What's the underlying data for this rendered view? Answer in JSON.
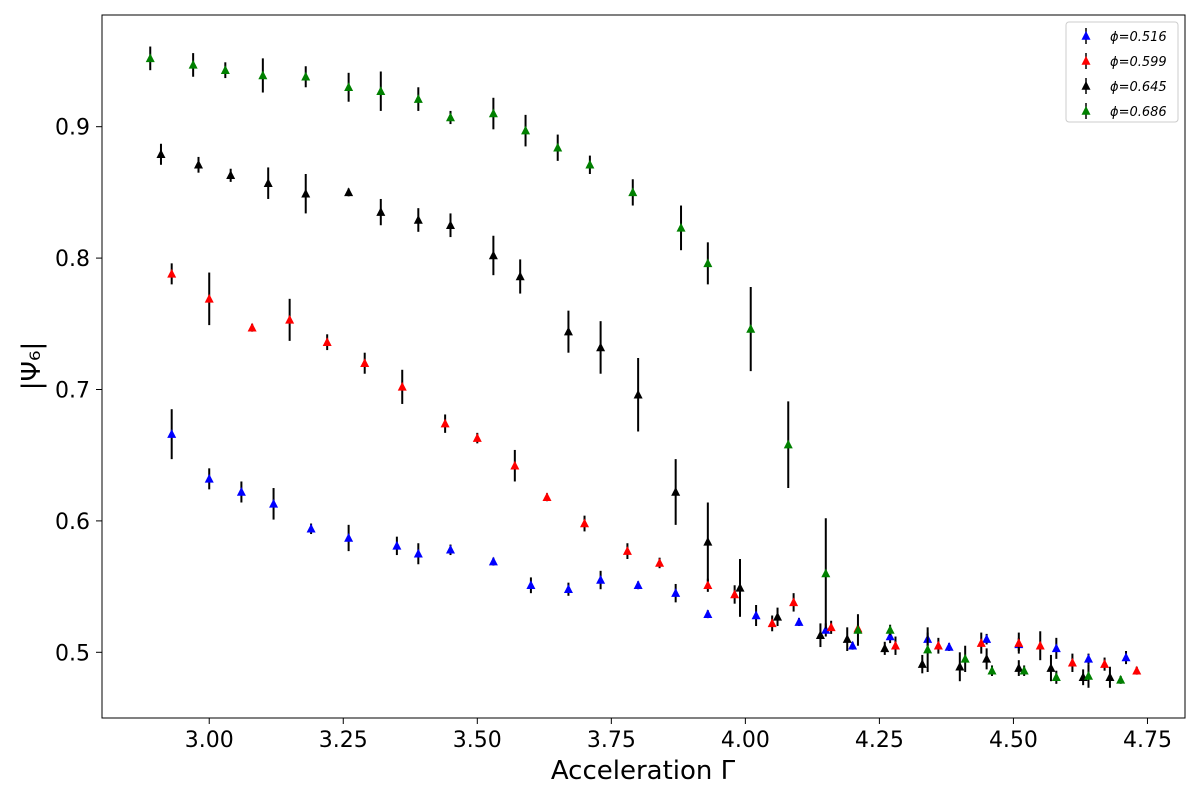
{
  "chart_data": {
    "type": "scatter",
    "xlabel": "Acceleration Γ",
    "ylabel": "|Ψ₆|",
    "xlim": [
      2.8,
      4.82
    ],
    "ylim": [
      0.45,
      0.985
    ],
    "xticks": [
      3.0,
      3.25,
      3.5,
      3.75,
      4.0,
      4.25,
      4.5,
      4.75
    ],
    "xtick_labels": [
      "3.00",
      "3.25",
      "3.50",
      "3.75",
      "4.00",
      "4.25",
      "4.50",
      "4.75"
    ],
    "yticks": [
      0.5,
      0.6,
      0.7,
      0.8,
      0.9
    ],
    "ytick_labels": [
      "0.5",
      "0.6",
      "0.7",
      "0.8",
      "0.9"
    ],
    "grid": false,
    "legend_position": "top-right",
    "marker": "triangle",
    "error_bar_color": "#000000",
    "series": [
      {
        "name": "ϕ=0.516",
        "color": "#0000ff",
        "points": [
          [
            2.93,
            0.666,
            0.019
          ],
          [
            3.0,
            0.632,
            0.008
          ],
          [
            3.06,
            0.622,
            0.008
          ],
          [
            3.12,
            0.613,
            0.012
          ],
          [
            3.19,
            0.594,
            0.004
          ],
          [
            3.26,
            0.587,
            0.01
          ],
          [
            3.35,
            0.581,
            0.007
          ],
          [
            3.39,
            0.575,
            0.008
          ],
          [
            3.45,
            0.578,
            0.004
          ],
          [
            3.53,
            0.569,
            0.003
          ],
          [
            3.6,
            0.551,
            0.006
          ],
          [
            3.67,
            0.548,
            0.005
          ],
          [
            3.73,
            0.555,
            0.007
          ],
          [
            3.8,
            0.551,
            0.003
          ],
          [
            3.87,
            0.545,
            0.007
          ],
          [
            3.93,
            0.529,
            0.003
          ],
          [
            4.02,
            0.528,
            0.008
          ],
          [
            4.1,
            0.523,
            0.003
          ],
          [
            4.15,
            0.517,
            0.005
          ],
          [
            4.2,
            0.505,
            0.003
          ],
          [
            4.27,
            0.512,
            0.005
          ],
          [
            4.34,
            0.51,
            0.005
          ],
          [
            4.38,
            0.504,
            0.003
          ],
          [
            4.45,
            0.51,
            0.004
          ],
          [
            4.51,
            0.506,
            0.005
          ],
          [
            4.58,
            0.503,
            0.008
          ],
          [
            4.64,
            0.495,
            0.004
          ],
          [
            4.71,
            0.496,
            0.005
          ]
        ]
      },
      {
        "name": "ϕ=0.599",
        "color": "#ff0000",
        "points": [
          [
            2.93,
            0.788,
            0.008
          ],
          [
            3.0,
            0.769,
            0.02
          ],
          [
            3.08,
            0.747,
            0.003
          ],
          [
            3.15,
            0.753,
            0.016
          ],
          [
            3.22,
            0.736,
            0.006
          ],
          [
            3.29,
            0.72,
            0.008
          ],
          [
            3.36,
            0.702,
            0.013
          ],
          [
            3.44,
            0.674,
            0.007
          ],
          [
            3.5,
            0.663,
            0.004
          ],
          [
            3.57,
            0.642,
            0.012
          ],
          [
            3.63,
            0.618,
            0.003
          ],
          [
            3.7,
            0.598,
            0.006
          ],
          [
            3.78,
            0.577,
            0.006
          ],
          [
            3.84,
            0.568,
            0.004
          ],
          [
            3.93,
            0.551,
            0.005
          ],
          [
            3.98,
            0.544,
            0.007
          ],
          [
            4.05,
            0.522,
            0.006
          ],
          [
            4.09,
            0.538,
            0.007
          ],
          [
            4.16,
            0.519,
            0.005
          ],
          [
            4.21,
            0.518,
            0.003
          ],
          [
            4.28,
            0.505,
            0.007
          ],
          [
            4.36,
            0.505,
            0.006
          ],
          [
            4.44,
            0.507,
            0.008
          ],
          [
            4.51,
            0.507,
            0.008
          ],
          [
            4.55,
            0.505,
            0.011
          ],
          [
            4.61,
            0.492,
            0.007
          ],
          [
            4.67,
            0.491,
            0.005
          ],
          [
            4.73,
            0.486,
            0.003
          ]
        ]
      },
      {
        "name": "ϕ=0.645",
        "color": "#000000",
        "points": [
          [
            2.91,
            0.879,
            0.008
          ],
          [
            2.98,
            0.871,
            0.006
          ],
          [
            3.04,
            0.863,
            0.005
          ],
          [
            3.11,
            0.857,
            0.012
          ],
          [
            3.18,
            0.849,
            0.015
          ],
          [
            3.26,
            0.85,
            0.003
          ],
          [
            3.32,
            0.835,
            0.01
          ],
          [
            3.39,
            0.829,
            0.009
          ],
          [
            3.45,
            0.825,
            0.009
          ],
          [
            3.53,
            0.802,
            0.015
          ],
          [
            3.58,
            0.786,
            0.013
          ],
          [
            3.67,
            0.744,
            0.016
          ],
          [
            3.73,
            0.732,
            0.02
          ],
          [
            3.8,
            0.696,
            0.028
          ],
          [
            3.87,
            0.622,
            0.025
          ],
          [
            3.93,
            0.584,
            0.03
          ],
          [
            3.99,
            0.549,
            0.022
          ],
          [
            4.06,
            0.527,
            0.007
          ],
          [
            4.14,
            0.513,
            0.009
          ],
          [
            4.19,
            0.51,
            0.009
          ],
          [
            4.26,
            0.503,
            0.005
          ],
          [
            4.33,
            0.491,
            0.007
          ],
          [
            4.4,
            0.489,
            0.011
          ],
          [
            4.45,
            0.495,
            0.008
          ],
          [
            4.51,
            0.488,
            0.006
          ],
          [
            4.57,
            0.488,
            0.01
          ],
          [
            4.63,
            0.481,
            0.006
          ],
          [
            4.68,
            0.481,
            0.008
          ]
        ]
      },
      {
        "name": "ϕ=0.686",
        "color": "#008000",
        "points": [
          [
            2.89,
            0.952,
            0.009
          ],
          [
            2.97,
            0.947,
            0.009
          ],
          [
            3.03,
            0.943,
            0.006
          ],
          [
            3.1,
            0.939,
            0.013
          ],
          [
            3.18,
            0.938,
            0.008
          ],
          [
            3.26,
            0.93,
            0.011
          ],
          [
            3.32,
            0.927,
            0.015
          ],
          [
            3.39,
            0.921,
            0.009
          ],
          [
            3.45,
            0.907,
            0.005
          ],
          [
            3.53,
            0.91,
            0.012
          ],
          [
            3.59,
            0.897,
            0.012
          ],
          [
            3.65,
            0.884,
            0.01
          ],
          [
            3.71,
            0.871,
            0.007
          ],
          [
            3.79,
            0.85,
            0.01
          ],
          [
            3.88,
            0.823,
            0.017
          ],
          [
            3.93,
            0.796,
            0.016
          ],
          [
            4.01,
            0.746,
            0.032
          ],
          [
            4.08,
            0.658,
            0.033
          ],
          [
            4.15,
            0.56,
            0.042
          ],
          [
            4.21,
            0.517,
            0.012
          ],
          [
            4.27,
            0.517,
            0.004
          ],
          [
            4.34,
            0.502,
            0.017
          ],
          [
            4.41,
            0.495,
            0.01
          ],
          [
            4.46,
            0.486,
            0.004
          ],
          [
            4.52,
            0.486,
            0.004
          ],
          [
            4.58,
            0.481,
            0.005
          ],
          [
            4.64,
            0.482,
            0.009
          ],
          [
            4.7,
            0.479,
            0.003
          ]
        ]
      }
    ]
  }
}
